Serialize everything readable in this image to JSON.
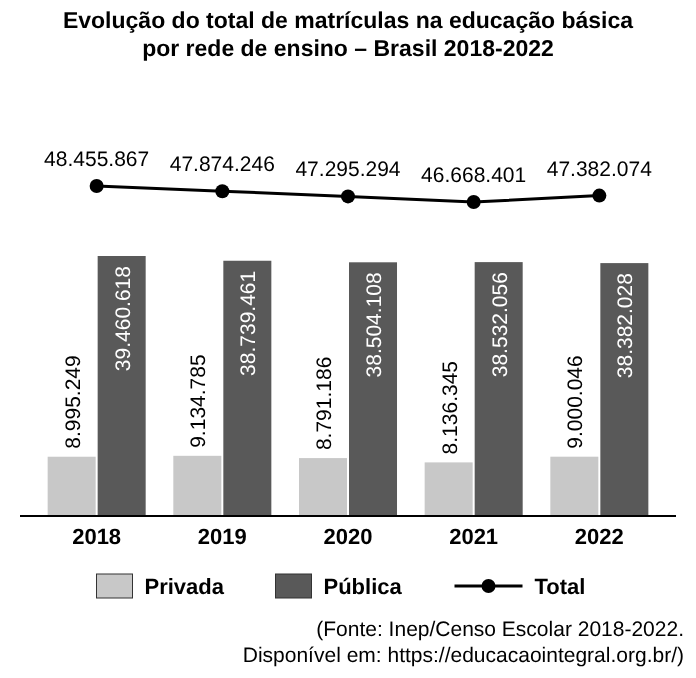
{
  "chart_data": [
    {
      "type": "line",
      "title": "Evolução do total de matrículas na educação básica\npor rede de ensino – Brasil 2018-2022",
      "categories": [
        null,
        null,
        null,
        null,
        null
      ],
      "series": [
        {
          "name": "Total",
          "color": "#000000",
          "values": [
            48455867,
            47874246,
            47295294,
            46668401,
            47382074
          ],
          "value_labels": [
            "48.455.867",
            "47.874.246",
            "47.295.294",
            "46.668.401",
            "47.382.074"
          ]
        }
      ],
      "marker": "circle",
      "legend": "bottom"
    },
    {
      "type": "bar",
      "categories": [
        "2018",
        "2019",
        "2020",
        "2021",
        "2022"
      ],
      "series": [
        {
          "name": "Privada",
          "color": "#c8c8c8",
          "values": [
            8995249,
            9134785,
            8791186,
            8136345,
            9000046
          ],
          "value_labels": [
            "8.995.249",
            "9.134.785",
            "8.791.186",
            "8.136.345",
            "9.000.046"
          ]
        },
        {
          "name": "Pública",
          "color": "#595959",
          "values": [
            39460618,
            38739461,
            38504108,
            38532056,
            38382028
          ],
          "value_labels": [
            "39.460.618",
            "38.739.461",
            "38.504.108",
            "38.532.056",
            "38.382.028"
          ]
        }
      ],
      "legend": "bottom",
      "annotations": [
        "(Fonte: Inep/Censo Escolar 2018-2022.",
        "Disponível em: https://educacaointegral.org.br/)"
      ]
    }
  ]
}
